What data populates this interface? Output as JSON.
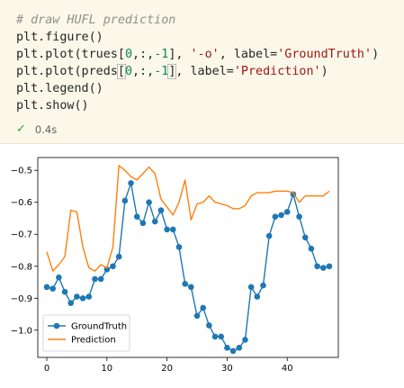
{
  "cell": {
    "lines": [
      [
        {
          "t": "# draw HUFL prediction",
          "c": "cm"
        }
      ],
      [
        {
          "t": "plt.figure()",
          "c": ""
        }
      ],
      [
        {
          "t": "plt.plot(trues[",
          "c": ""
        },
        {
          "t": "0",
          "c": "num"
        },
        {
          "t": ",:,",
          "c": ""
        },
        {
          "t": "-1",
          "c": "num"
        },
        {
          "t": "], ",
          "c": ""
        },
        {
          "t": "'-o'",
          "c": "str"
        },
        {
          "t": ", label=",
          "c": ""
        },
        {
          "t": "'GroundTruth'",
          "c": "str"
        },
        {
          "t": ")",
          "c": ""
        }
      ],
      [
        {
          "t": "plt.plot(preds",
          "c": ""
        },
        {
          "t": "[",
          "c": "br"
        },
        {
          "t": "0",
          "c": "num"
        },
        {
          "t": ",:,",
          "c": ""
        },
        {
          "t": "-1",
          "c": "num"
        },
        {
          "t": "]",
          "c": "br"
        },
        {
          "t": ", label=",
          "c": ""
        },
        {
          "t": "'Prediction'",
          "c": "str"
        },
        {
          "t": ")",
          "c": ""
        }
      ],
      [
        {
          "t": "plt.legend()",
          "c": ""
        }
      ],
      [
        {
          "t": "plt.show()",
          "c": ""
        }
      ]
    ],
    "status": {
      "icon": "check-icon",
      "time": "0.4s"
    }
  },
  "chart_data": {
    "type": "line",
    "xlim": [
      -1.5,
      48.5
    ],
    "ylim": [
      -1.085,
      -0.46
    ],
    "xticks": [
      0,
      10,
      20,
      30,
      40
    ],
    "yticks": [
      -0.5,
      -0.6,
      -0.7,
      -0.8,
      -0.9,
      -1.0
    ],
    "xtick_labels": [
      "0",
      "10",
      "20",
      "30",
      "40"
    ],
    "ytick_labels": [
      "−0.5",
      "−0.6",
      "−0.7",
      "−0.8",
      "−0.9",
      "−1.0"
    ],
    "legend_position": "lower-left",
    "grid": false,
    "series": [
      {
        "name": "GroundTruth",
        "color": "#1f77b4",
        "marker": "o",
        "x": [
          0,
          1,
          2,
          3,
          4,
          5,
          6,
          7,
          8,
          9,
          10,
          11,
          12,
          13,
          14,
          15,
          16,
          17,
          18,
          19,
          20,
          21,
          22,
          23,
          24,
          25,
          26,
          27,
          28,
          29,
          30,
          31,
          32,
          33,
          34,
          35,
          36,
          37,
          38,
          39,
          40,
          41,
          42,
          43,
          44,
          45,
          46,
          47
        ],
        "y": [
          -0.865,
          -0.87,
          -0.835,
          -0.88,
          -0.915,
          -0.895,
          -0.9,
          -0.895,
          -0.84,
          -0.84,
          -0.81,
          -0.8,
          -0.77,
          -0.595,
          -0.54,
          -0.645,
          -0.665,
          -0.6,
          -0.66,
          -0.625,
          -0.685,
          -0.685,
          -0.74,
          -0.855,
          -0.865,
          -0.955,
          -0.93,
          -0.985,
          -1.02,
          -1.02,
          -1.055,
          -1.065,
          -1.055,
          -1.03,
          -0.865,
          -0.895,
          -0.86,
          -0.705,
          -0.645,
          -0.64,
          -0.63,
          -0.575,
          -0.645,
          -0.71,
          -0.745,
          -0.8,
          -0.805,
          -0.8
        ]
      },
      {
        "name": "Prediction",
        "color": "#ff7f0e",
        "marker": "",
        "x": [
          0,
          1,
          2,
          3,
          4,
          5,
          6,
          7,
          8,
          9,
          10,
          11,
          12,
          13,
          14,
          15,
          16,
          17,
          18,
          19,
          20,
          21,
          22,
          23,
          24,
          25,
          26,
          27,
          28,
          29,
          30,
          31,
          32,
          33,
          34,
          35,
          36,
          37,
          38,
          39,
          40,
          41,
          42,
          43,
          44,
          45,
          46,
          47
        ],
        "y": [
          -0.755,
          -0.815,
          -0.795,
          -0.77,
          -0.625,
          -0.63,
          -0.74,
          -0.805,
          -0.815,
          -0.795,
          -0.805,
          -0.74,
          -0.485,
          -0.5,
          -0.52,
          -0.53,
          -0.51,
          -0.49,
          -0.51,
          -0.59,
          -0.615,
          -0.64,
          -0.6,
          -0.53,
          -0.655,
          -0.605,
          -0.6,
          -0.58,
          -0.6,
          -0.605,
          -0.61,
          -0.62,
          -0.62,
          -0.61,
          -0.58,
          -0.57,
          -0.57,
          -0.57,
          -0.565,
          -0.565,
          -0.565,
          -0.57,
          -0.6,
          -0.58,
          -0.58,
          -0.58,
          -0.58,
          -0.565
        ]
      }
    ]
  }
}
